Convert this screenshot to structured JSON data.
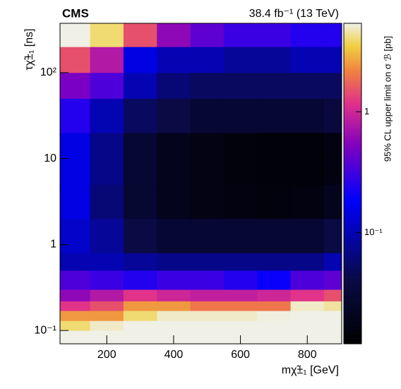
{
  "chart_data": {
    "type": "heatmap",
    "title": "CMS",
    "subtitle": "38.4 fb⁻¹ (13 TeV)",
    "x_label": "mχ̃±₁ [GeV]",
    "y_label": "τχ̃±₁ [ns]",
    "colorbar_label": "95% CL upper limit on σ ℬ [pb]",
    "xbins": [
      60,
      150,
      250,
      350,
      450,
      550,
      650,
      750,
      850,
      903
    ],
    "ybins": [
      0.07,
      0.1,
      0.13,
      0.17,
      0.22,
      0.3,
      0.5,
      0.8,
      2,
      5,
      20,
      50,
      100,
      200,
      375
    ],
    "z": [
      [
        8,
        8,
        8,
        8,
        8,
        8,
        8,
        8,
        8
      ],
      [
        4,
        5,
        8,
        8,
        8,
        8,
        8,
        8,
        8
      ],
      [
        2.5,
        2.5,
        4,
        5,
        5,
        5,
        5.3,
        8,
        8
      ],
      [
        1.2,
        1.5,
        2.5,
        2.5,
        2,
        2,
        2,
        5,
        4.5
      ],
      [
        0.6,
        0.8,
        1.2,
        1,
        0.9,
        0.9,
        1,
        1.2,
        1.5
      ],
      [
        0.35,
        0.3,
        0.25,
        0.3,
        0.3,
        0.25,
        0.2,
        0.35,
        0.4
      ],
      [
        0.1,
        0.1,
        0.08,
        0.07,
        0.07,
        0.07,
        0.07,
        0.07,
        0.1
      ],
      [
        0.12,
        0.08,
        0.04,
        0.03,
        0.03,
        0.03,
        0.03,
        0.03,
        0.04
      ],
      [
        0.15,
        0.06,
        0.03,
        0.02,
        0.017,
        0.016,
        0.015,
        0.016,
        0.02
      ],
      [
        0.15,
        0.07,
        0.03,
        0.02,
        0.017,
        0.015,
        0.014,
        0.014,
        0.016
      ],
      [
        0.25,
        0.1,
        0.05,
        0.04,
        0.03,
        0.03,
        0.03,
        0.03,
        0.035
      ],
      [
        0.5,
        0.35,
        0.1,
        0.06,
        0.05,
        0.05,
        0.05,
        0.05,
        0.05
      ],
      [
        1.5,
        0.8,
        0.15,
        0.1,
        0.1,
        0.08,
        0.08,
        0.1,
        0.1
      ],
      [
        6,
        4,
        1.5,
        0.6,
        0.4,
        0.3,
        0.3,
        0.25,
        0.25
      ]
    ],
    "xlim": [
      60,
      903
    ],
    "ylim": [
      0.07,
      375
    ],
    "ylog": true,
    "zlim": [
      0.012,
      5.4
    ],
    "zlog": true,
    "xticks": [
      200,
      400,
      600,
      800
    ],
    "yticks": [
      {
        "value": 0.1,
        "label": "10⁻¹"
      },
      1,
      10,
      {
        "value": 100,
        "label": "10²"
      }
    ],
    "zticks": [
      {
        "value": 0.1,
        "label": "10⁻¹"
      },
      1
    ],
    "colorscale": [
      [
        0,
        "#000000"
      ],
      [
        0.2,
        "#0a0a46"
      ],
      [
        0.45,
        "#0000ff"
      ],
      [
        0.62,
        "#8000c0"
      ],
      [
        0.75,
        "#e0308c"
      ],
      [
        0.85,
        "#f08040"
      ],
      [
        0.93,
        "#f0d040"
      ],
      [
        1,
        "#f0f0e6"
      ]
    ]
  }
}
